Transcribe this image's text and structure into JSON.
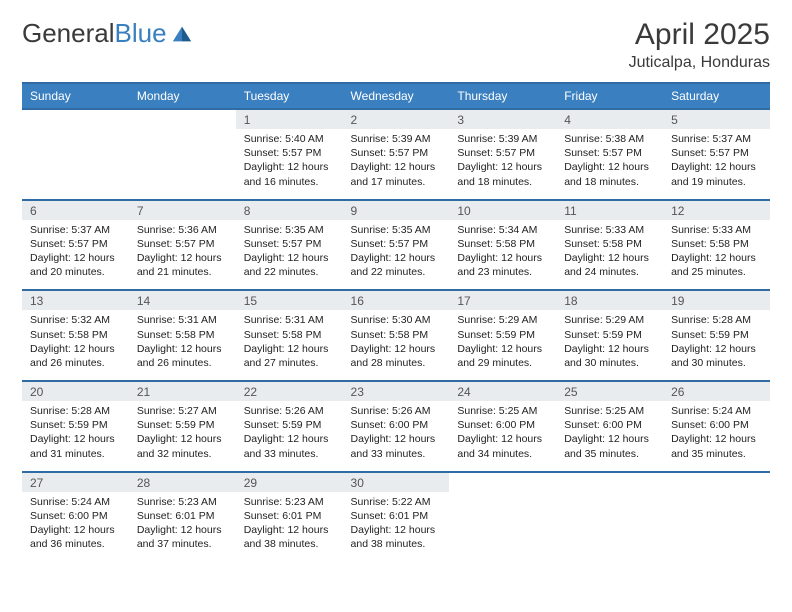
{
  "brand": {
    "name_a": "General",
    "name_b": "Blue"
  },
  "title": "April 2025",
  "location": "Juticalpa, Honduras",
  "colors": {
    "header_bg": "#3a7fbf",
    "header_border": "#2f6ca3",
    "daynum_bg": "#e9ecef",
    "text": "#222222",
    "title": "#3a3a3a"
  },
  "weekdays": [
    "Sunday",
    "Monday",
    "Tuesday",
    "Wednesday",
    "Thursday",
    "Friday",
    "Saturday"
  ],
  "weeks": [
    [
      null,
      null,
      {
        "n": "1",
        "sr": "5:40 AM",
        "ss": "5:57 PM",
        "dl": "12 hours and 16 minutes."
      },
      {
        "n": "2",
        "sr": "5:39 AM",
        "ss": "5:57 PM",
        "dl": "12 hours and 17 minutes."
      },
      {
        "n": "3",
        "sr": "5:39 AM",
        "ss": "5:57 PM",
        "dl": "12 hours and 18 minutes."
      },
      {
        "n": "4",
        "sr": "5:38 AM",
        "ss": "5:57 PM",
        "dl": "12 hours and 18 minutes."
      },
      {
        "n": "5",
        "sr": "5:37 AM",
        "ss": "5:57 PM",
        "dl": "12 hours and 19 minutes."
      }
    ],
    [
      {
        "n": "6",
        "sr": "5:37 AM",
        "ss": "5:57 PM",
        "dl": "12 hours and 20 minutes."
      },
      {
        "n": "7",
        "sr": "5:36 AM",
        "ss": "5:57 PM",
        "dl": "12 hours and 21 minutes."
      },
      {
        "n": "8",
        "sr": "5:35 AM",
        "ss": "5:57 PM",
        "dl": "12 hours and 22 minutes."
      },
      {
        "n": "9",
        "sr": "5:35 AM",
        "ss": "5:57 PM",
        "dl": "12 hours and 22 minutes."
      },
      {
        "n": "10",
        "sr": "5:34 AM",
        "ss": "5:58 PM",
        "dl": "12 hours and 23 minutes."
      },
      {
        "n": "11",
        "sr": "5:33 AM",
        "ss": "5:58 PM",
        "dl": "12 hours and 24 minutes."
      },
      {
        "n": "12",
        "sr": "5:33 AM",
        "ss": "5:58 PM",
        "dl": "12 hours and 25 minutes."
      }
    ],
    [
      {
        "n": "13",
        "sr": "5:32 AM",
        "ss": "5:58 PM",
        "dl": "12 hours and 26 minutes."
      },
      {
        "n": "14",
        "sr": "5:31 AM",
        "ss": "5:58 PM",
        "dl": "12 hours and 26 minutes."
      },
      {
        "n": "15",
        "sr": "5:31 AM",
        "ss": "5:58 PM",
        "dl": "12 hours and 27 minutes."
      },
      {
        "n": "16",
        "sr": "5:30 AM",
        "ss": "5:58 PM",
        "dl": "12 hours and 28 minutes."
      },
      {
        "n": "17",
        "sr": "5:29 AM",
        "ss": "5:59 PM",
        "dl": "12 hours and 29 minutes."
      },
      {
        "n": "18",
        "sr": "5:29 AM",
        "ss": "5:59 PM",
        "dl": "12 hours and 30 minutes."
      },
      {
        "n": "19",
        "sr": "5:28 AM",
        "ss": "5:59 PM",
        "dl": "12 hours and 30 minutes."
      }
    ],
    [
      {
        "n": "20",
        "sr": "5:28 AM",
        "ss": "5:59 PM",
        "dl": "12 hours and 31 minutes."
      },
      {
        "n": "21",
        "sr": "5:27 AM",
        "ss": "5:59 PM",
        "dl": "12 hours and 32 minutes."
      },
      {
        "n": "22",
        "sr": "5:26 AM",
        "ss": "5:59 PM",
        "dl": "12 hours and 33 minutes."
      },
      {
        "n": "23",
        "sr": "5:26 AM",
        "ss": "6:00 PM",
        "dl": "12 hours and 33 minutes."
      },
      {
        "n": "24",
        "sr": "5:25 AM",
        "ss": "6:00 PM",
        "dl": "12 hours and 34 minutes."
      },
      {
        "n": "25",
        "sr": "5:25 AM",
        "ss": "6:00 PM",
        "dl": "12 hours and 35 minutes."
      },
      {
        "n": "26",
        "sr": "5:24 AM",
        "ss": "6:00 PM",
        "dl": "12 hours and 35 minutes."
      }
    ],
    [
      {
        "n": "27",
        "sr": "5:24 AM",
        "ss": "6:00 PM",
        "dl": "12 hours and 36 minutes."
      },
      {
        "n": "28",
        "sr": "5:23 AM",
        "ss": "6:01 PM",
        "dl": "12 hours and 37 minutes."
      },
      {
        "n": "29",
        "sr": "5:23 AM",
        "ss": "6:01 PM",
        "dl": "12 hours and 38 minutes."
      },
      {
        "n": "30",
        "sr": "5:22 AM",
        "ss": "6:01 PM",
        "dl": "12 hours and 38 minutes."
      },
      null,
      null,
      null
    ]
  ],
  "labels": {
    "sunrise": "Sunrise: ",
    "sunset": "Sunset: ",
    "daylight": "Daylight: "
  }
}
